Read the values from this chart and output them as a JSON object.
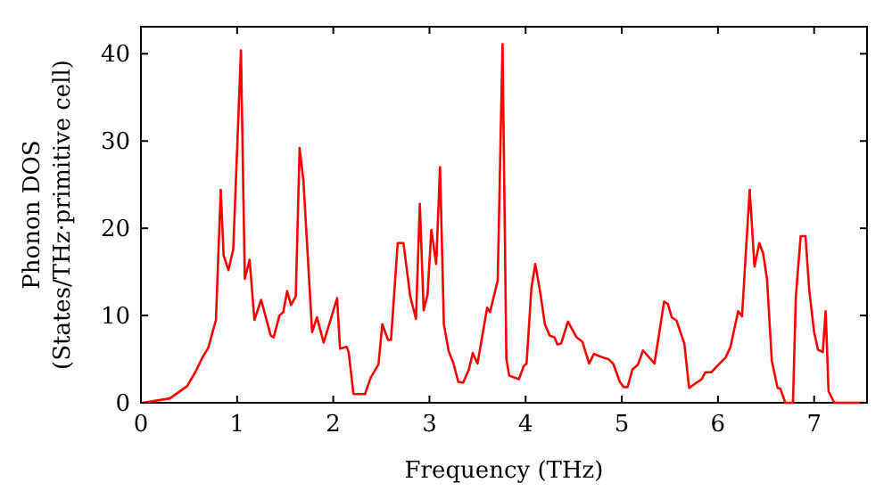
{
  "chart_data": {
    "type": "line",
    "xlabel": "Frequency (THz)",
    "ylabel": "Phonon DOS\n(States/THz·primitive cell)",
    "xlim": [
      0,
      7.55
    ],
    "ylim": [
      0,
      43.1
    ],
    "xticks": [
      0,
      1,
      2,
      3,
      4,
      5,
      6,
      7
    ],
    "yticks": [
      0,
      10,
      20,
      30,
      40
    ],
    "grid": false,
    "marker": "none",
    "line_style": "solid",
    "series": [
      {
        "color": "#ff0000",
        "x": [
          0.02,
          0.3,
          0.48,
          0.57,
          0.64,
          0.7,
          0.78,
          0.83,
          0.86,
          0.91,
          0.96,
          1.04,
          1.08,
          1.13,
          1.18,
          1.25,
          1.35,
          1.38,
          1.44,
          1.48,
          1.52,
          1.56,
          1.61,
          1.65,
          1.69,
          1.78,
          1.83,
          1.9,
          2.04,
          2.07,
          2.14,
          2.16,
          2.21,
          2.33,
          2.39,
          2.47,
          2.51,
          2.57,
          2.6,
          2.67,
          2.73,
          2.8,
          2.86,
          2.9,
          2.94,
          2.98,
          3.02,
          3.07,
          3.11,
          3.15,
          3.2,
          3.25,
          3.3,
          3.35,
          3.41,
          3.45,
          3.5,
          3.6,
          3.63,
          3.71,
          3.76,
          3.8,
          3.83,
          3.93,
          3.98,
          4.01,
          4.06,
          4.1,
          4.15,
          4.2,
          4.25,
          4.3,
          4.33,
          4.37,
          4.44,
          4.53,
          4.59,
          4.66,
          4.71,
          4.8,
          4.86,
          4.91,
          4.98,
          5.02,
          5.06,
          5.11,
          5.17,
          5.22,
          5.34,
          5.44,
          5.48,
          5.52,
          5.57,
          5.65,
          5.7,
          5.79,
          5.83,
          5.87,
          5.93,
          6.0,
          6.08,
          6.13,
          6.21,
          6.25,
          6.33,
          6.38,
          6.43,
          6.47,
          6.51,
          6.56,
          6.62,
          6.65,
          6.7,
          6.78,
          6.81,
          6.86,
          6.91,
          6.95,
          7.0,
          7.04,
          7.09,
          7.12,
          7.15,
          7.21,
          7.52
        ],
        "values": [
          0,
          0.5,
          1.9,
          3.6,
          5.2,
          6.3,
          9.5,
          24.4,
          16.9,
          15.2,
          17.6,
          40.4,
          14.2,
          16.4,
          9.5,
          11.8,
          7.7,
          7.5,
          10,
          10.4,
          12.8,
          11.2,
          12.2,
          29.2,
          25.4,
          8.1,
          9.8,
          6.9,
          12,
          6.2,
          6.4,
          5.8,
          1,
          1,
          2.9,
          4.4,
          9,
          7.2,
          7.2,
          18.3,
          18.3,
          12.2,
          9.6,
          22.8,
          10.6,
          12.4,
          19.8,
          15.9,
          27,
          9,
          5.9,
          4.5,
          2.4,
          2.3,
          3.8,
          5.7,
          4.5,
          10.9,
          10.4,
          14,
          41.1,
          5,
          3.1,
          2.7,
          4.2,
          4.5,
          13.1,
          15.9,
          12.8,
          9,
          7.7,
          7.5,
          6.7,
          6.8,
          9.3,
          7.5,
          7,
          4.5,
          5.6,
          5.2,
          5,
          4.5,
          2.4,
          1.8,
          1.8,
          3.8,
          4.4,
          6,
          4.5,
          11.6,
          11.3,
          9.8,
          9.4,
          6.8,
          1.7,
          2.4,
          2.7,
          3.5,
          3.5,
          4.3,
          5.2,
          6.4,
          10.5,
          9.9,
          24.4,
          15.6,
          18.3,
          17.1,
          14.2,
          4.8,
          1.7,
          1.6,
          0,
          0,
          12.2,
          19.1,
          19.1,
          12.8,
          8.1,
          6.1,
          5.8,
          10.5,
          1.3,
          0,
          0
        ]
      }
    ]
  }
}
